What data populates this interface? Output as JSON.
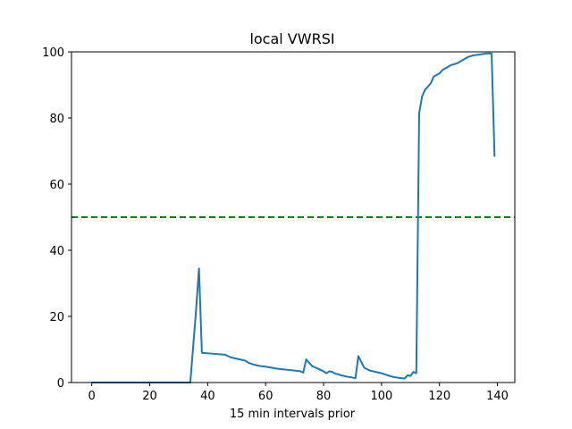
{
  "chart_data": {
    "type": "line",
    "title": "local VWRSI",
    "xlabel": "15 min intervals prior",
    "ylabel": "",
    "xlim": [
      -7,
      146
    ],
    "ylim": [
      0,
      100
    ],
    "x_ticks": [
      0,
      20,
      40,
      60,
      80,
      100,
      120,
      140
    ],
    "y_ticks": [
      0,
      20,
      40,
      60,
      80,
      100
    ],
    "grid": false,
    "colors": {
      "series": "#1f77b4",
      "reference_line": "#008000"
    },
    "reference_line": {
      "y": 50,
      "style": "dashed"
    },
    "series": [
      {
        "x": [
          0,
          34,
          36,
          37,
          38,
          42,
          46,
          47,
          48,
          50,
          51,
          53,
          54,
          56,
          58,
          60,
          62,
          64,
          66,
          68,
          70,
          72,
          73,
          74,
          76,
          78,
          80,
          81,
          82,
          83,
          84,
          85,
          86,
          88,
          90,
          91,
          92,
          94,
          96,
          98,
          100,
          102,
          104,
          106,
          108,
          109,
          110,
          111,
          112,
          113,
          114,
          115,
          116,
          117,
          118,
          119,
          120,
          121,
          122,
          124,
          126,
          128,
          130,
          132,
          134,
          136,
          138,
          139
        ],
        "y": [
          0,
          0,
          22,
          34.5,
          9,
          8.7,
          8.4,
          8,
          7.6,
          7.2,
          7,
          6.6,
          6,
          5.4,
          5,
          4.8,
          4.5,
          4.2,
          4,
          3.8,
          3.6,
          3.4,
          3,
          7,
          5,
          4.2,
          3.4,
          2.8,
          3.4,
          3.2,
          2.7,
          2.5,
          2.2,
          1.8,
          1.5,
          1.3,
          8,
          4.5,
          3.6,
          3.2,
          2.8,
          2.2,
          1.7,
          1.4,
          1.2,
          2.2,
          2,
          3.2,
          2.8,
          81.5,
          86.5,
          88.5,
          89.5,
          90.5,
          92.5,
          93,
          93.5,
          94.5,
          95,
          96,
          96.5,
          97.5,
          98.5,
          99,
          99.2,
          99.5,
          99.5,
          68.5
        ]
      }
    ]
  }
}
